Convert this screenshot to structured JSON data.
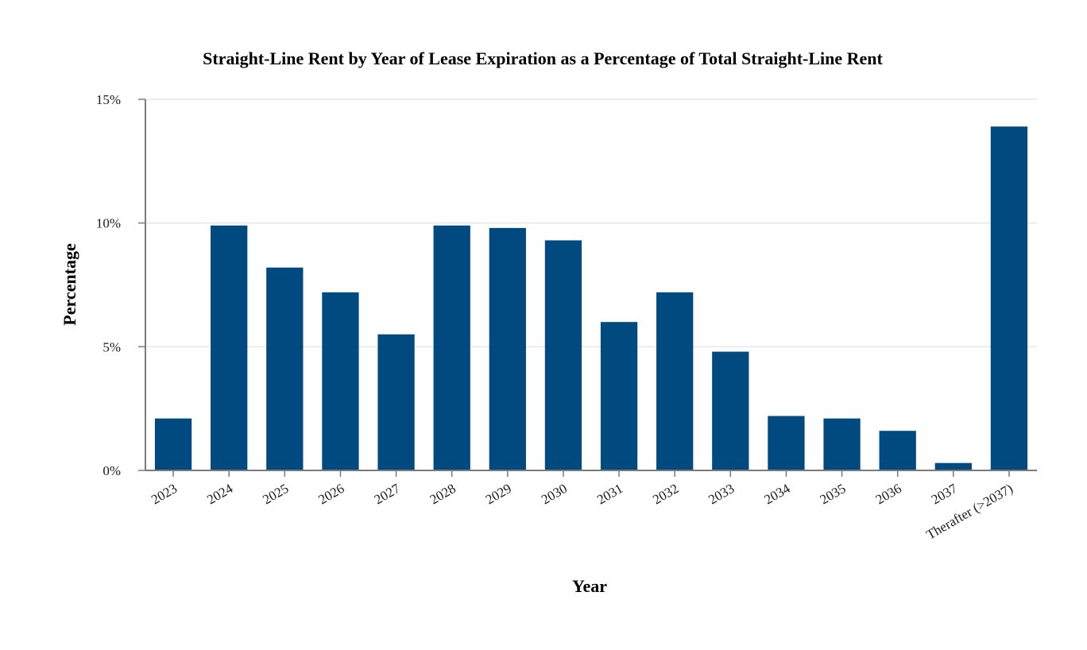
{
  "chart_data": {
    "type": "bar",
    "title": "Straight-Line Rent by Year of Lease Expiration as a Percentage of Total Straight-Line Rent",
    "xlabel": "Year",
    "ylabel": "Percentage",
    "categories": [
      "2023",
      "2024",
      "2025",
      "2026",
      "2027",
      "2028",
      "2029",
      "2030",
      "2031",
      "2032",
      "2033",
      "2034",
      "2035",
      "2036",
      "2037",
      "Therafter (>2037)"
    ],
    "values": [
      2.1,
      9.9,
      8.2,
      7.2,
      5.5,
      9.9,
      9.8,
      9.3,
      6.0,
      7.2,
      4.8,
      2.2,
      2.1,
      1.6,
      0.3,
      13.9
    ],
    "ylim": [
      0,
      15
    ],
    "yticks": [
      0,
      5,
      10,
      15
    ],
    "ytick_labels": [
      "0%",
      "5%",
      "10%",
      "15%"
    ],
    "grid": true,
    "bar_color": "#004a7f"
  }
}
